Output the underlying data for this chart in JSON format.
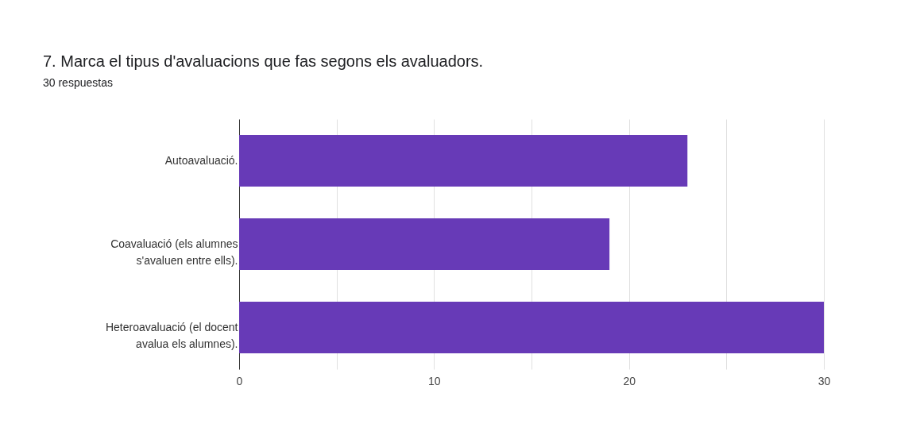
{
  "chart_data": {
    "type": "bar",
    "orientation": "horizontal",
    "title": "7. Marca el tipus d'avaluacions que fas segons els avaluadors.",
    "subtitle": "30 respuestas",
    "categories": [
      "Autoavaluació.",
      "Coavaluació (els alumnes s'avaluen entre ells).",
      "Heteroavaluació (el docent avalua els alumnes)."
    ],
    "values": [
      23,
      19,
      30
    ],
    "color": "#673ab7",
    "xlim": [
      0,
      30
    ],
    "xticks": [
      0,
      {
        "value": 5,
        "label": null
      },
      10,
      {
        "value": 15,
        "label": null
      },
      20,
      {
        "value": 25,
        "label": null
      },
      30
    ],
    "grid": "x"
  }
}
